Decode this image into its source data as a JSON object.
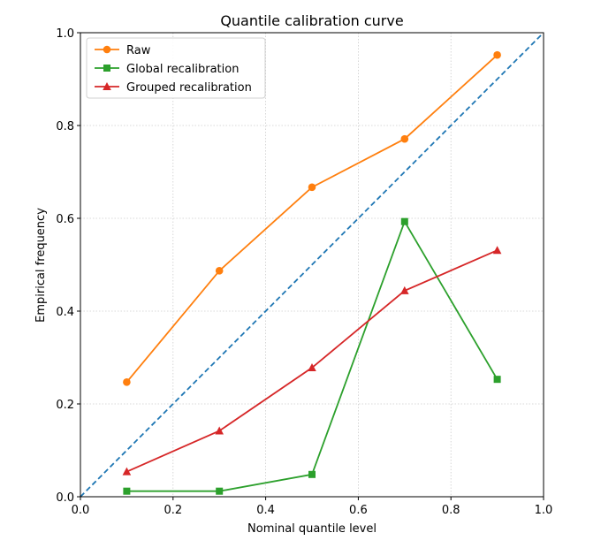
{
  "chart_data": {
    "type": "line",
    "title": "Quantile calibration curve",
    "xlabel": "Nominal quantile level",
    "ylabel": "Empirical frequency",
    "xlim": [
      0.0,
      1.0
    ],
    "ylim": [
      0.0,
      1.0
    ],
    "xticks": [
      0.0,
      0.2,
      0.4,
      0.6,
      0.8,
      1.0
    ],
    "yticks": [
      0.0,
      0.2,
      0.4,
      0.6,
      0.8,
      1.0
    ],
    "xtick_labels": [
      "0.0",
      "0.2",
      "0.4",
      "0.6",
      "0.8",
      "1.0"
    ],
    "ytick_labels": [
      "0.0",
      "0.2",
      "0.4",
      "0.6",
      "0.8",
      "1.0"
    ],
    "grid": true,
    "legend_position": "top-left",
    "reference_line": {
      "style": "dashed",
      "color": "#1f77b4",
      "x": [
        0.0,
        1.0
      ],
      "y": [
        0.0,
        1.0
      ]
    },
    "x": [
      0.1,
      0.3,
      0.5,
      0.7,
      0.9
    ],
    "series": [
      {
        "name": "Raw",
        "marker": "circle",
        "color": "#ff7f0e",
        "values": [
          0.247,
          0.487,
          0.667,
          0.771,
          0.952
        ]
      },
      {
        "name": "Global recalibration",
        "marker": "square",
        "color": "#2ca02c",
        "values": [
          0.012,
          0.012,
          0.048,
          0.593,
          0.253
        ]
      },
      {
        "name": "Grouped recalibration",
        "marker": "triangle",
        "color": "#d62728",
        "values": [
          0.054,
          0.142,
          0.278,
          0.444,
          0.531
        ]
      }
    ]
  }
}
